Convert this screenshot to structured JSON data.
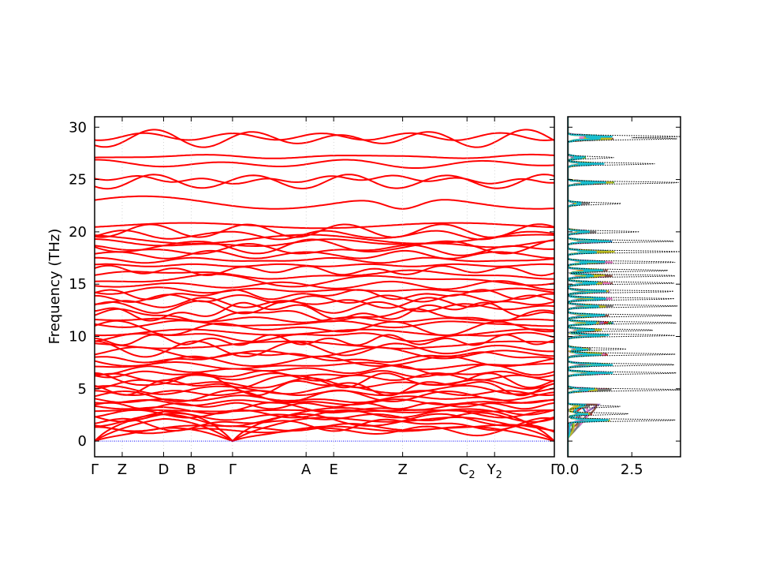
{
  "chart_data": [
    {
      "type": "line",
      "title": "",
      "xlabel": "",
      "ylabel": "Frequency (THz)",
      "ylim": [
        -1.5,
        31
      ],
      "grid": false,
      "legend": "none",
      "line_color": "#ff0000",
      "zero_line_color": "#0000ff",
      "x_range": [
        0,
        10
      ],
      "high_symmetry_points": [
        {
          "label": "Γ",
          "sub": "",
          "x": 0.0
        },
        {
          "label": "Z",
          "sub": "",
          "x": 0.6
        },
        {
          "label": "D",
          "sub": "",
          "x": 1.5
        },
        {
          "label": "B",
          "sub": "",
          "x": 2.1
        },
        {
          "label": "Γ",
          "sub": "",
          "x": 3.0
        },
        {
          "label": "A",
          "sub": "",
          "x": 4.6
        },
        {
          "label": "E",
          "sub": "",
          "x": 5.2
        },
        {
          "label": "Z",
          "sub": "",
          "x": 6.7
        },
        {
          "label": "C",
          "sub": "2",
          "x": 8.1
        },
        {
          "label": "Y",
          "sub": "2",
          "x": 8.7
        },
        {
          "label": "Γ",
          "sub": "",
          "x": 10.0
        }
      ],
      "yticks": [
        0,
        5,
        10,
        15,
        20,
        25,
        30
      ],
      "ytick_labels": [
        "0",
        "5",
        "10",
        "15",
        "20",
        "25",
        "30"
      ],
      "band_frequencies_at_gamma": [
        0,
        0,
        0,
        1.0,
        1.3,
        1.6,
        2.0,
        2.3,
        2.6,
        2.9,
        3.1,
        3.4,
        3.7,
        4.0,
        4.3,
        4.6,
        4.9,
        5.2,
        5.5,
        5.8,
        6.1,
        6.4,
        6.8,
        7.2,
        7.6,
        8.0,
        8.4,
        8.8,
        9.2,
        9.6,
        10.0,
        10.4,
        10.8,
        11.2,
        11.6,
        12.0,
        12.4,
        12.8,
        13.2,
        13.6,
        14.0,
        14.4,
        14.9,
        15.4,
        15.9,
        16.3,
        16.8,
        17.3,
        17.8,
        18.3,
        18.6,
        18.9,
        19.3,
        19.7,
        20.1,
        20.6,
        22.8,
        24.8,
        25.0,
        26.5,
        27.2,
        28.9,
        29.1
      ]
    },
    {
      "type": "line",
      "title": "",
      "xlabel": "",
      "ylabel": "",
      "xlim": [
        0,
        4.4
      ],
      "ylim": [
        -1.5,
        31
      ],
      "xticks": [
        0.0,
        2.5
      ],
      "xtick_labels": [
        "0.0",
        "2.5"
      ],
      "grid": false,
      "legend": "none",
      "total_dos_color": "#000000",
      "projected_colors": [
        "#1f77b4",
        "#ff7f0e",
        "#2ca02c",
        "#d62728",
        "#9467bd",
        "#8c564b",
        "#e377c2",
        "#7f7f7f",
        "#bcbd22",
        "#17becf"
      ],
      "total_dos_peaks": [
        {
          "freq": 2.0,
          "height": 4.3
        },
        {
          "freq": 2.6,
          "height": 2.4
        },
        {
          "freq": 3.3,
          "height": 2.1
        },
        {
          "freq": 4.9,
          "height": 4.4
        },
        {
          "freq": 6.5,
          "height": 4.3
        },
        {
          "freq": 7.3,
          "height": 4.3
        },
        {
          "freq": 8.3,
          "height": 4.2
        },
        {
          "freq": 8.8,
          "height": 2.3
        },
        {
          "freq": 10.1,
          "height": 4.2
        },
        {
          "freq": 10.6,
          "height": 3.4
        },
        {
          "freq": 11.3,
          "height": 4.3
        },
        {
          "freq": 12.0,
          "height": 4.1
        },
        {
          "freq": 12.9,
          "height": 4.3
        },
        {
          "freq": 13.6,
          "height": 4.2
        },
        {
          "freq": 14.3,
          "height": 4.2
        },
        {
          "freq": 15.1,
          "height": 4.3
        },
        {
          "freq": 15.8,
          "height": 4.3
        },
        {
          "freq": 16.3,
          "height": 4.0
        },
        {
          "freq": 17.1,
          "height": 4.3
        },
        {
          "freq": 18.1,
          "height": 4.4
        },
        {
          "freq": 19.1,
          "height": 4.2
        },
        {
          "freq": 20.0,
          "height": 2.8
        },
        {
          "freq": 22.7,
          "height": 2.1
        },
        {
          "freq": 24.7,
          "height": 4.4
        },
        {
          "freq": 26.5,
          "height": 3.4
        },
        {
          "freq": 27.1,
          "height": 1.8
        },
        {
          "freq": 28.9,
          "height": 4.3
        },
        {
          "freq": 29.1,
          "height": 4.4
        }
      ]
    }
  ]
}
